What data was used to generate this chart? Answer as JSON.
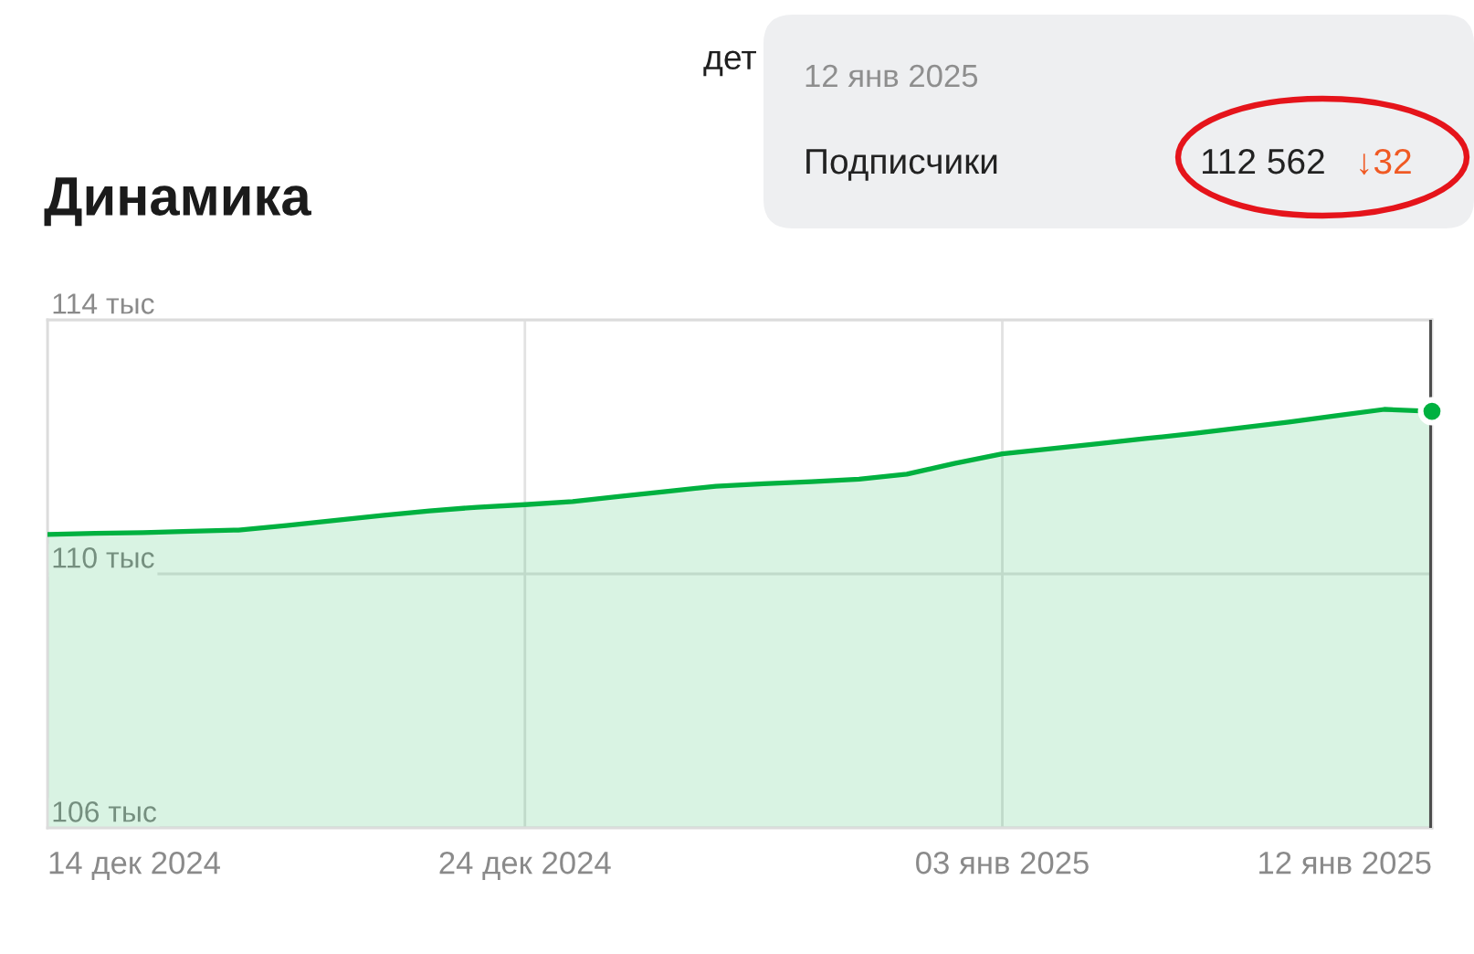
{
  "chart_data": {
    "type": "area",
    "title": "Динамика",
    "annotations": [
      "дет",
      "12 янв 2025",
      "Подписчики",
      "112 562",
      "↓32"
    ],
    "x": [
      "2024-12-14",
      "2024-12-15",
      "2024-12-16",
      "2024-12-17",
      "2024-12-18",
      "2024-12-19",
      "2024-12-20",
      "2024-12-21",
      "2024-12-22",
      "2024-12-23",
      "2024-12-24",
      "2024-12-25",
      "2024-12-26",
      "2024-12-27",
      "2024-12-28",
      "2024-12-29",
      "2024-12-30",
      "2024-12-31",
      "2025-01-01",
      "2025-01-02",
      "2025-01-03",
      "2025-01-04",
      "2025-01-05",
      "2025-01-06",
      "2025-01-07",
      "2025-01-08",
      "2025-01-09",
      "2025-01-10",
      "2025-01-11",
      "2025-01-12"
    ],
    "series": [
      {
        "color": "#00b140",
        "values": [
          110.62,
          110.64,
          110.65,
          110.67,
          110.69,
          110.76,
          110.84,
          110.92,
          110.99,
          111.05,
          111.09,
          111.14,
          111.22,
          111.3,
          111.38,
          111.42,
          111.45,
          111.49,
          111.57,
          111.74,
          111.89,
          111.97,
          112.05,
          112.13,
          112.21,
          112.3,
          112.39,
          112.49,
          112.59,
          112.56
        ]
      },
      {
        "type": "scatter",
        "color": "#00b140",
        "marker": "circle",
        "x": [
          "2025-01-12"
        ],
        "values": [
          112.56
        ]
      }
    ],
    "xlim": [
      "2024-12-14",
      "2025-01-12"
    ],
    "xticks": [
      {
        "value": "2024-12-14",
        "label": "14 дек 2024"
      },
      {
        "value": "2024-12-24",
        "label": "24 дек 2024"
      },
      {
        "value": "2025-01-03",
        "label": "03 янв 2025"
      },
      {
        "value": "2025-01-12",
        "label": "12 янв 2025"
      }
    ],
    "ylim": [
      106,
      114
    ],
    "yticks": [
      {
        "value": 106,
        "label": "106 тыс"
      },
      {
        "value": 110,
        "label": "110 тыс"
      },
      {
        "value": 114,
        "label": "114 тыс"
      }
    ],
    "grid": true,
    "ref_lines": [
      {
        "axis": "x",
        "value": "2025-01-12",
        "color": "#4d4d4d"
      }
    ]
  }
}
